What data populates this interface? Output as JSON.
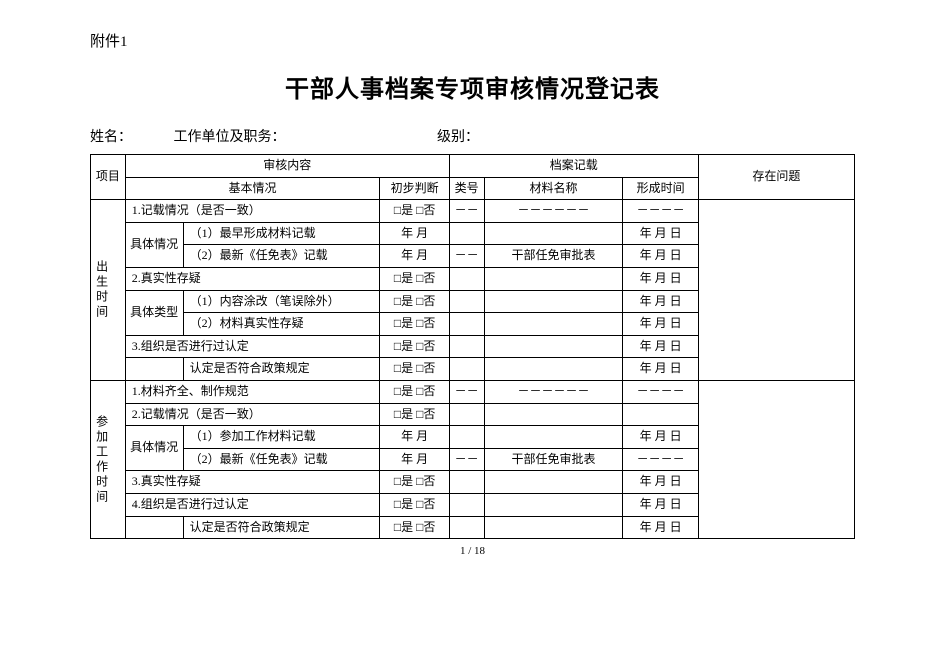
{
  "attachment": "附件1",
  "title": "干部人事档案专项审核情况登记表",
  "header": {
    "name_label": "姓名：",
    "unit_label": "工作单位及职务：",
    "level_label": "级别："
  },
  "thead": {
    "project": "项目",
    "review_content": "审核内容",
    "archive_record": "档案记载",
    "issues": "存在问题",
    "basic": "基本情况",
    "judge": "初步判断",
    "category": "类号",
    "material": "材料名称",
    "form_time": "形成时间"
  },
  "sections": {
    "birth": "出生时间",
    "work": "参加工作时间"
  },
  "labels": {
    "detail": "具体情况",
    "detail_type": "具体类型",
    "yes_no": "□是 □否",
    "year_month": "年 月",
    "ymd": "年 月 日",
    "dash6": "－－－－－－",
    "dash2": "－－",
    "dash4": "－－－－",
    "cadre_form": "干部任免审批表"
  },
  "rows": {
    "b1": "1.记载情况（是否一致）",
    "b1a": "（1）最早形成材料记载",
    "b1b": "（2）最新《任免表》记载",
    "b2": "2.真实性存疑",
    "b2a": "（1）内容涂改（笔误除外）",
    "b2b": "（2）材料真实性存疑",
    "b3": "3.组织是否进行过认定",
    "b3a": "认定是否符合政策规定",
    "w1": "1.材料齐全、制作规范",
    "w2": "2.记载情况（是否一致）",
    "w2a": "（1）参加工作材料记载",
    "w2b": "（2）最新《任免表》记载",
    "w3": "3.真实性存疑",
    "w4": "4.组织是否进行过认定",
    "w4a": "认定是否符合政策规定"
  },
  "page": "1 / 18"
}
